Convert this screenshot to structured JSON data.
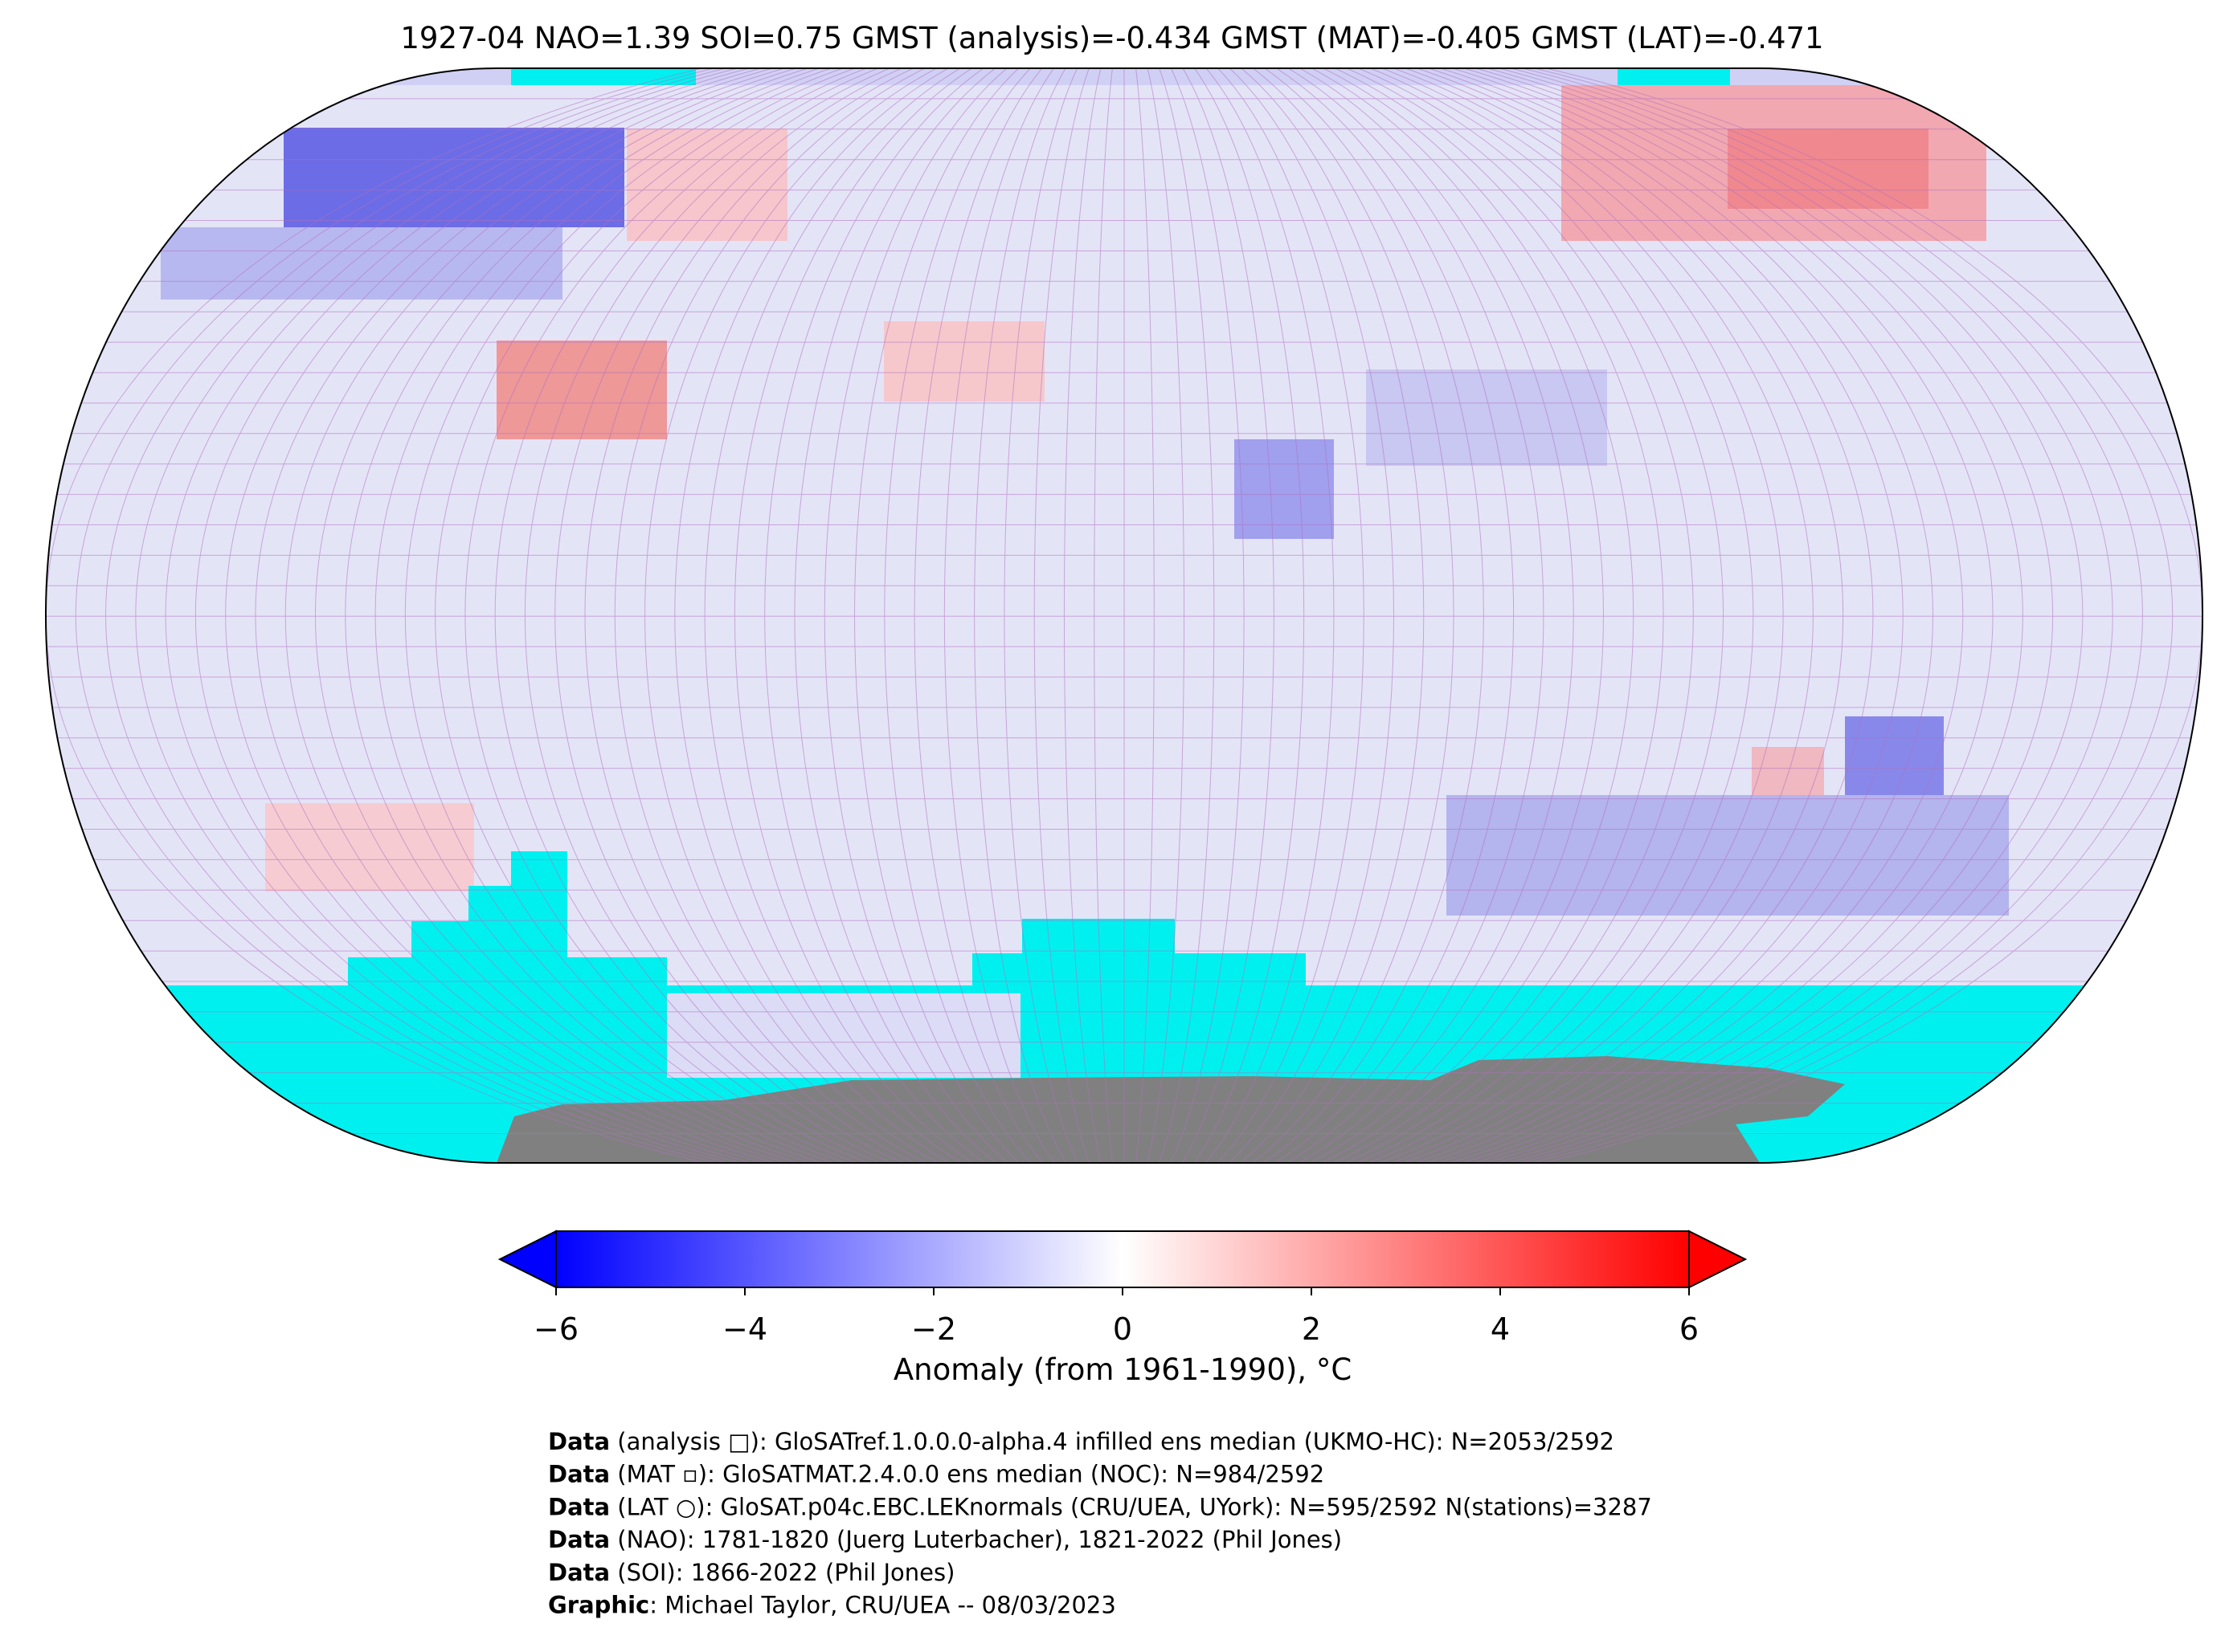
{
  "title": "1927-04 NAO=1.39 SOI=0.75 GMST (analysis)=-0.434 GMST (MAT)=-0.405 GMST (LAT)=-0.471",
  "colorbar": {
    "label": "Anomaly (from 1961-1990), °C",
    "lim": [
      -6,
      6
    ],
    "colors": [
      "#0000ff",
      "#ffffff",
      "#ff0000"
    ],
    "ticks": [
      {
        "value": -6,
        "label": "−6"
      },
      {
        "value": -4,
        "label": "−4"
      },
      {
        "value": -2,
        "label": "−2"
      },
      0,
      2,
      4,
      6
    ]
  },
  "footer": [
    {
      "bold": "Data",
      "text": " (analysis □): GloSATref.1.0.0.0-alpha.4 infilled ens median (UKMO-HC): N=2053/2592"
    },
    {
      "bold": "Data",
      "text": " (MAT ▫): GloSATMAT.2.4.0.0 ens median (NOC): N=984/2592"
    },
    {
      "bold": "Data",
      "text": " (LAT ○): GloSAT.p04c.EBC.LEKnormals (CRU/UEA, UYork): N=595/2592 N(stations)=3287"
    },
    {
      "bold": "Data",
      "text": " (NAO): 1781-1820 (Juerg Luterbacher), 1821-2022 (Phil Jones)"
    },
    {
      "bold": "Data",
      "text": " (SOI): 1866-2022 (Phil Jones)"
    },
    {
      "bold": "Graphic",
      "text": ": Michael Taylor, CRU/UEA -- 08/03/2023"
    }
  ]
}
